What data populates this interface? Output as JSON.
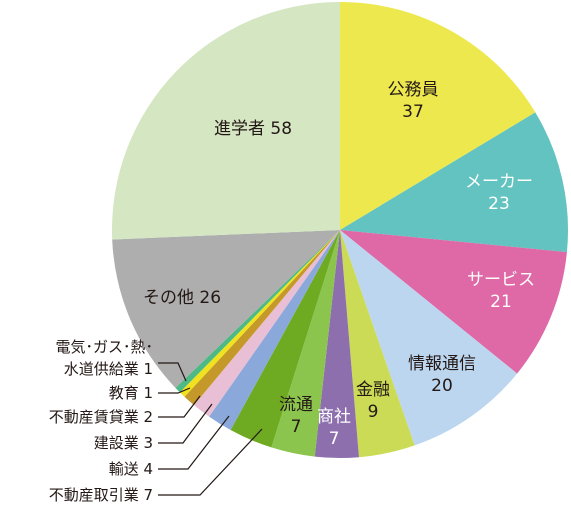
{
  "chart_data": {
    "type": "pie",
    "start": "top",
    "direction": "clockwise",
    "slices": [
      {
        "name": "公務員",
        "value": 37,
        "color": "#ede84e"
      },
      {
        "name": "メーカー",
        "value": 23,
        "color": "#62c3c0"
      },
      {
        "name": "サービス",
        "value": 21,
        "color": "#df68a6"
      },
      {
        "name": "情報通信",
        "value": 20,
        "color": "#bcd6ef"
      },
      {
        "name": "金融",
        "value": 9,
        "color": "#cbdb56"
      },
      {
        "name": "商社",
        "value": 7,
        "color": "#8e6fae"
      },
      {
        "name": "流通",
        "value": 7,
        "color": "#8cc54e"
      },
      {
        "name": "不動産取引業",
        "value": 7,
        "color": "#6fab22"
      },
      {
        "name": "輸送",
        "value": 4,
        "color": "#8ba8db"
      },
      {
        "name": "建設業",
        "value": 3,
        "color": "#e9bfd6"
      },
      {
        "name": "不動産賃貸業",
        "value": 2,
        "color": "#c5982a"
      },
      {
        "name": "教育",
        "value": 1,
        "color": "#f0e21f"
      },
      {
        "name": "電気・ガス・熱・水道供給業",
        "value": 1,
        "color": "#4dba86"
      },
      {
        "name": "その他",
        "value": 26,
        "color": "#aeaeae"
      },
      {
        "name": "進学者",
        "value": 58,
        "color": "#d5e6c3"
      }
    ],
    "inside_labels": [
      {
        "lines": [
          "公務員",
          "37"
        ],
        "light": false
      },
      {
        "lines": [
          "メーカー",
          "23"
        ],
        "light": true
      },
      {
        "lines": [
          "サービス",
          "21"
        ],
        "light": true
      },
      {
        "lines": [
          "情報通信",
          "20"
        ],
        "light": false
      },
      {
        "lines": [
          "金融",
          "9"
        ],
        "light": false
      },
      {
        "lines": [
          "商社",
          "7"
        ],
        "light": true
      },
      {
        "lines": [
          "流通",
          "7"
        ],
        "light": false
      },
      {
        "lines": [
          "その他 26"
        ],
        "light": false
      },
      {
        "lines": [
          "進学者 58"
        ],
        "light": false
      }
    ],
    "outside_labels": [
      {
        "lines": [
          "電気･ガス･熱･",
          "水道供給業 1"
        ]
      },
      {
        "lines": [
          "教育 1"
        ]
      },
      {
        "lines": [
          "不動産賃貸業 2"
        ]
      },
      {
        "lines": [
          "建設業 3"
        ]
      },
      {
        "lines": [
          "輸送 4"
        ]
      },
      {
        "lines": [
          "不動産取引業 7"
        ]
      }
    ]
  }
}
